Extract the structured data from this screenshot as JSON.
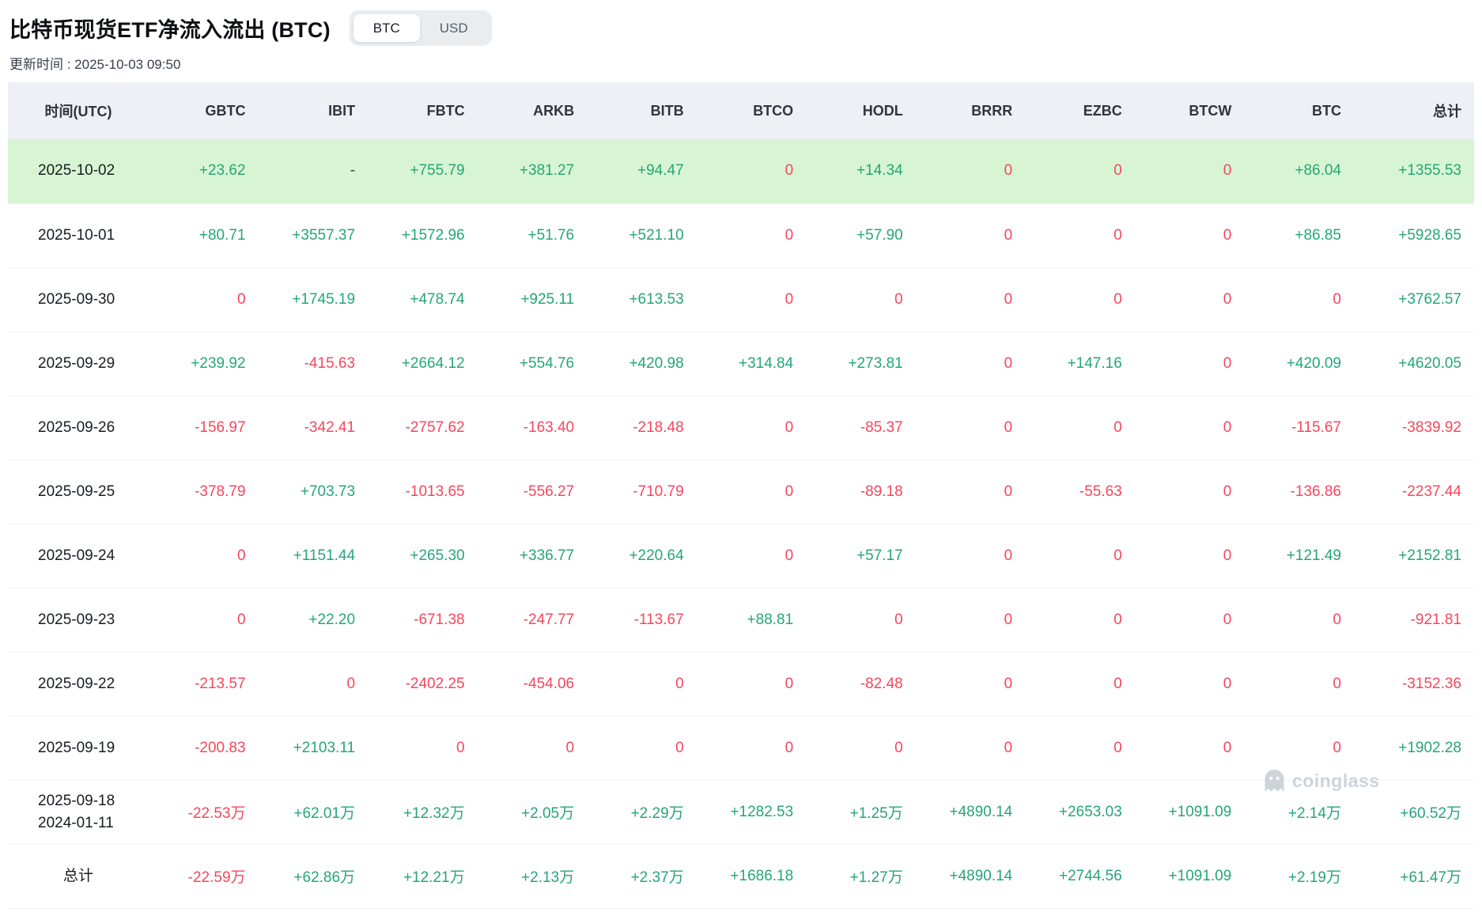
{
  "header": {
    "title": "比特币现货ETF净流入流出 (BTC)",
    "toggle": {
      "options": [
        "BTC",
        "USD"
      ],
      "selected": "BTC"
    },
    "updated": "更新时间 : 2025-10-03 09:50"
  },
  "watermark": {
    "text": "coinglass"
  },
  "colors": {
    "positive": "#26a578",
    "negative": "#f6465d",
    "zero": "#f6465d",
    "highlight_row_bg": "#d7f5d2",
    "header_row_bg": "#edf0f4"
  },
  "table": {
    "columns": [
      "时间(UTC)",
      "GBTC",
      "IBIT",
      "FBTC",
      "ARKB",
      "BITB",
      "BTCO",
      "HODL",
      "BRRR",
      "EZBC",
      "BTCW",
      "BTC",
      "总计"
    ],
    "rows": [
      {
        "date": [
          "2025-10-02"
        ],
        "highlight": true,
        "values": [
          "+23.62",
          "-",
          "+755.79",
          "+381.27",
          "+94.47",
          "0",
          "+14.34",
          "0",
          "0",
          "0",
          "+86.04",
          "+1355.53"
        ]
      },
      {
        "date": [
          "2025-10-01"
        ],
        "values": [
          "+80.71",
          "+3557.37",
          "+1572.96",
          "+51.76",
          "+521.10",
          "0",
          "+57.90",
          "0",
          "0",
          "0",
          "+86.85",
          "+5928.65"
        ]
      },
      {
        "date": [
          "2025-09-30"
        ],
        "values": [
          "0",
          "+1745.19",
          "+478.74",
          "+925.11",
          "+613.53",
          "0",
          "0",
          "0",
          "0",
          "0",
          "0",
          "+3762.57"
        ]
      },
      {
        "date": [
          "2025-09-29"
        ],
        "values": [
          "+239.92",
          "-415.63",
          "+2664.12",
          "+554.76",
          "+420.98",
          "+314.84",
          "+273.81",
          "0",
          "+147.16",
          "0",
          "+420.09",
          "+4620.05"
        ]
      },
      {
        "date": [
          "2025-09-26"
        ],
        "values": [
          "-156.97",
          "-342.41",
          "-2757.62",
          "-163.40",
          "-218.48",
          "0",
          "-85.37",
          "0",
          "0",
          "0",
          "-115.67",
          "-3839.92"
        ]
      },
      {
        "date": [
          "2025-09-25"
        ],
        "values": [
          "-378.79",
          "+703.73",
          "-1013.65",
          "-556.27",
          "-710.79",
          "0",
          "-89.18",
          "0",
          "-55.63",
          "0",
          "-136.86",
          "-2237.44"
        ]
      },
      {
        "date": [
          "2025-09-24"
        ],
        "values": [
          "0",
          "+1151.44",
          "+265.30",
          "+336.77",
          "+220.64",
          "0",
          "+57.17",
          "0",
          "0",
          "0",
          "+121.49",
          "+2152.81"
        ]
      },
      {
        "date": [
          "2025-09-23"
        ],
        "values": [
          "0",
          "+22.20",
          "-671.38",
          "-247.77",
          "-113.67",
          "+88.81",
          "0",
          "0",
          "0",
          "0",
          "0",
          "-921.81"
        ]
      },
      {
        "date": [
          "2025-09-22"
        ],
        "values": [
          "-213.57",
          "0",
          "-2402.25",
          "-454.06",
          "0",
          "0",
          "-82.48",
          "0",
          "0",
          "0",
          "0",
          "-3152.36"
        ]
      },
      {
        "date": [
          "2025-09-19"
        ],
        "values": [
          "-200.83",
          "+2103.11",
          "0",
          "0",
          "0",
          "0",
          "0",
          "0",
          "0",
          "0",
          "0",
          "+1902.28"
        ]
      },
      {
        "date": [
          "2025-09-18",
          "2024-01-11"
        ],
        "values": [
          "-22.53万",
          "+62.01万",
          "+12.32万",
          "+2.05万",
          "+2.29万",
          "+1282.53",
          "+1.25万",
          "+4890.14",
          "+2653.03",
          "+1091.09",
          "+2.14万",
          "+60.52万"
        ]
      },
      {
        "date": [
          "总计"
        ],
        "total": true,
        "values": [
          "-22.59万",
          "+62.86万",
          "+12.21万",
          "+2.13万",
          "+2.37万",
          "+1686.18",
          "+1.27万",
          "+4890.14",
          "+2744.56",
          "+1091.09",
          "+2.19万",
          "+61.47万"
        ]
      }
    ]
  }
}
